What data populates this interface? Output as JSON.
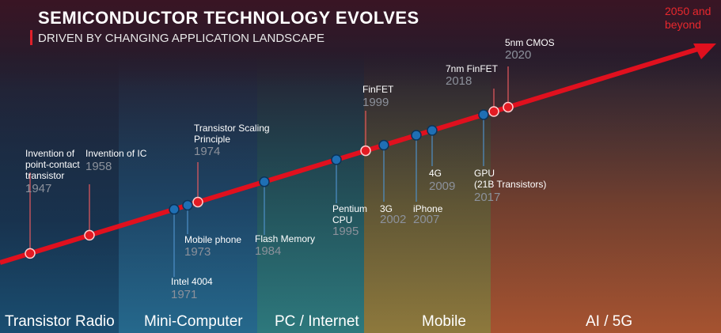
{
  "header": {
    "title": "SEMICONDUCTOR TECHNOLOGY EVOLVES",
    "subtitle": "DRIVEN BY CHANGING APPLICATION LANDSCAPE",
    "future_label": "2050 and\nbeyond"
  },
  "colors": {
    "line": "#e0101e",
    "red_dot": "#e31b23",
    "blue_dot": "#1f6fb4",
    "year_text": "#8c919b",
    "future_text": "#e8282d"
  },
  "milestones": [
    {
      "label": "Invention of\npoint-contact\ntransistor",
      "year": "1947",
      "dot": "red"
    },
    {
      "label": "Invention of IC",
      "year": "1958",
      "dot": "red"
    },
    {
      "label": "Intel 4004",
      "year": "1971",
      "dot": "blue"
    },
    {
      "label": "Mobile phone",
      "year": "1973",
      "dot": "blue"
    },
    {
      "label": "Transistor Scaling\nPrinciple",
      "year": "1974",
      "dot": "red"
    },
    {
      "label": "Flash Memory",
      "year": "1984",
      "dot": "blue"
    },
    {
      "label": "Pentium\nCPU",
      "year": "1995",
      "dot": "blue"
    },
    {
      "label": "FinFET",
      "year": "1999",
      "dot": "red"
    },
    {
      "label": "3G",
      "year": "2002",
      "dot": "blue"
    },
    {
      "label": "iPhone",
      "year": "2007",
      "dot": "blue"
    },
    {
      "label": "4G",
      "year": "2009",
      "dot": "blue"
    },
    {
      "label": "GPU\n(21B Transistors)",
      "year": "2017",
      "dot": "blue"
    },
    {
      "label": "7nm FinFET",
      "year": "2018",
      "dot": "red"
    },
    {
      "label": "5nm CMOS",
      "year": "2020",
      "dot": "red"
    }
  ],
  "eras": [
    "Transistor Radio",
    "Mini-Computer",
    "PC / Internet",
    "Mobile",
    "AI / 5G"
  ]
}
